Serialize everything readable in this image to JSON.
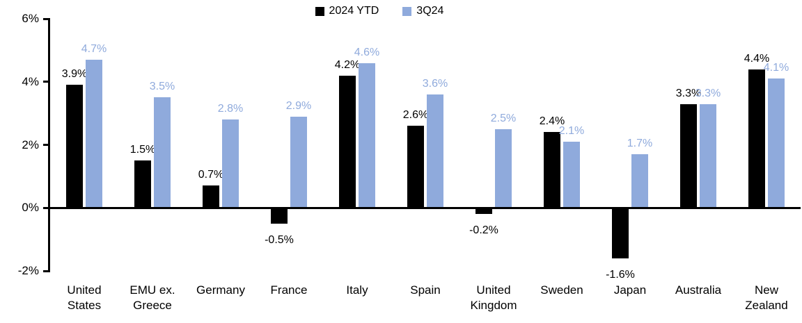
{
  "chart_data": {
    "type": "bar",
    "title": "",
    "categories": [
      "United States",
      "EMU ex. Greece",
      "Germany",
      "France",
      "Italy",
      "Spain",
      "United Kingdom",
      "Sweden",
      "Japan",
      "Australia",
      "New Zealand"
    ],
    "category_display_labels": [
      "United\nStates",
      "EMU ex.\nGreece",
      "Germany",
      "France",
      "Italy",
      "Spain",
      "United\nKingdom",
      "Sweden",
      "Japan",
      "Australia",
      "New\nZealand"
    ],
    "series": [
      {
        "name": "2024 YTD",
        "color": "#000000",
        "label_color": "#000000",
        "values": [
          3.9,
          1.5,
          0.7,
          -0.5,
          4.2,
          2.6,
          -0.2,
          2.4,
          -1.6,
          3.3,
          4.4
        ],
        "labels": [
          "3.9%",
          "1.5%",
          "0.7%",
          "-0.5%",
          "4.2%",
          "2.6%",
          "-0.2%",
          "2.4%",
          "-1.6%",
          "3.3%",
          "4.4%"
        ]
      },
      {
        "name": "3Q24",
        "color": "#8FAADC",
        "label_color": "#8FAADC",
        "values": [
          4.7,
          3.5,
          2.8,
          2.9,
          4.6,
          3.6,
          2.5,
          2.1,
          1.7,
          3.3,
          4.1
        ],
        "labels": [
          "4.7%",
          "3.5%",
          "2.8%",
          "2.9%",
          "4.6%",
          "3.6%",
          "2.5%",
          "2.1%",
          "1.7%",
          "3.3%",
          "4.1%"
        ]
      }
    ],
    "xlabel": "",
    "ylabel": "",
    "ylim": [
      -2,
      6
    ],
    "yticks": [
      {
        "value": 6,
        "label": "6%"
      },
      {
        "value": 4,
        "label": "4%"
      },
      {
        "value": 2,
        "label": "2%"
      },
      {
        "value": 0,
        "label": "0%"
      },
      {
        "value": -2,
        "label": "-2%"
      }
    ],
    "value_suffix": "%",
    "grid": false,
    "legend_position": "top-center",
    "axis_color": "#000000",
    "background_color": "#ffffff"
  }
}
